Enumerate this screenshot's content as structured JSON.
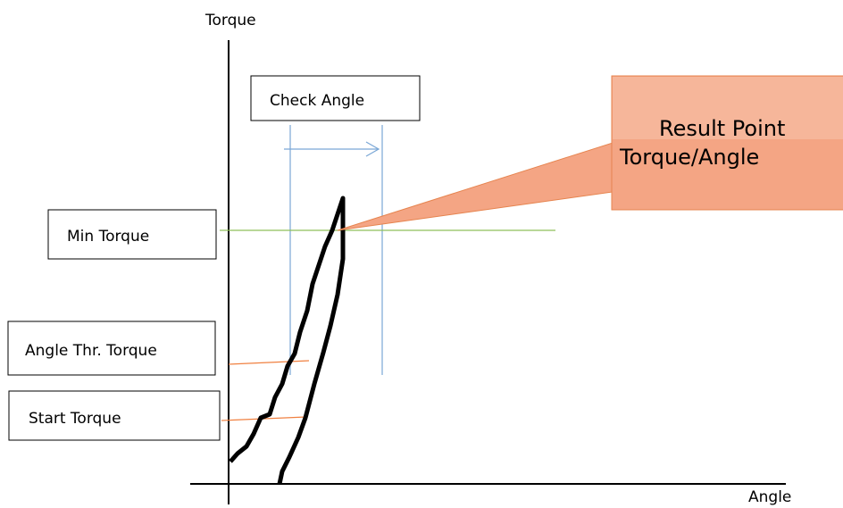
{
  "axes": {
    "y_label": "Torque",
    "x_label": "Angle"
  },
  "labels": {
    "check_angle": "Check Angle",
    "min_torque": "Min Torque",
    "angle_thr_torque": "Angle Thr. Torque",
    "start_torque": "Start Torque"
  },
  "callout": {
    "line1": "Result Point",
    "line2": "Torque/Angle"
  }
}
